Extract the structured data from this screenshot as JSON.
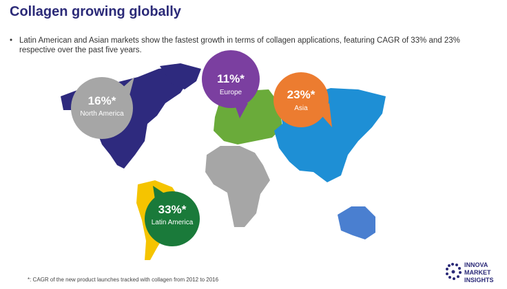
{
  "header": {
    "title": "Collagen growing globally"
  },
  "bullet": "Latin American and Asian markets show the fastest growth in terms of collagen applications, featuring CAGR of 33% and 23% respective over the past five years.",
  "regions": [
    {
      "value": "16%*",
      "label": "North America"
    },
    {
      "value": "11%*",
      "label": "Europe"
    },
    {
      "value": "23%*",
      "label": "Asia"
    },
    {
      "value": "33%*",
      "label": "Latin America"
    }
  ],
  "footnote": "*: CAGR of the new product launches tracked with collagen from 2012 to 2016",
  "logo": [
    "INNOVA",
    "MARKET",
    "INSIGHTS"
  ]
}
